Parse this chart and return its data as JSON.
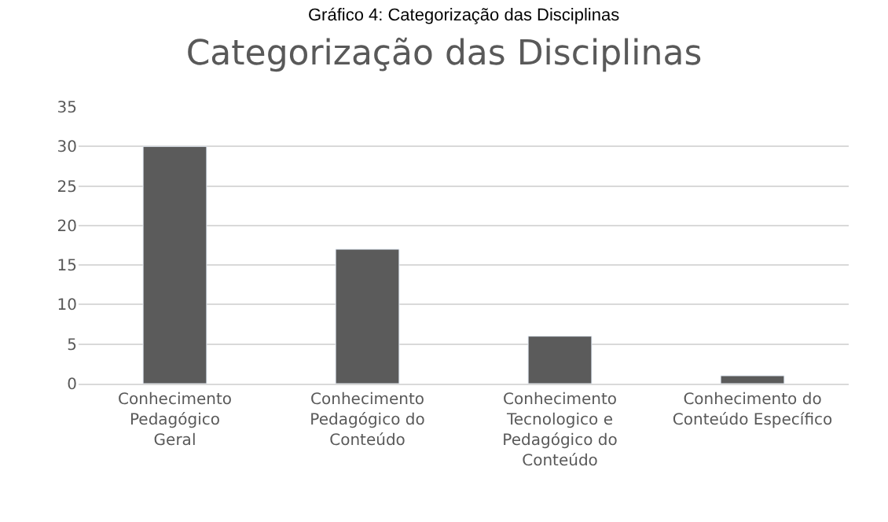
{
  "chart_data": {
    "type": "bar",
    "title": "Categorização das Disciplinas",
    "annotations": [
      "Gráfico 4: Categorização das Disciplinas"
    ],
    "categories": [
      "Conhecimento Pedagógico Geral",
      "Conhecimento Pedagógico do Conteúdo",
      "Conhecimento Tecnologico e Pedagógico do Conteúdo",
      "Conhecimento do Conteúdo Específico"
    ],
    "values": [
      30,
      17,
      6,
      1
    ],
    "color": "#5b5b5b",
    "ylim": [
      0,
      35
    ],
    "yticks": [
      0,
      5,
      10,
      15,
      20,
      25,
      30,
      35
    ],
    "grid": "y"
  }
}
